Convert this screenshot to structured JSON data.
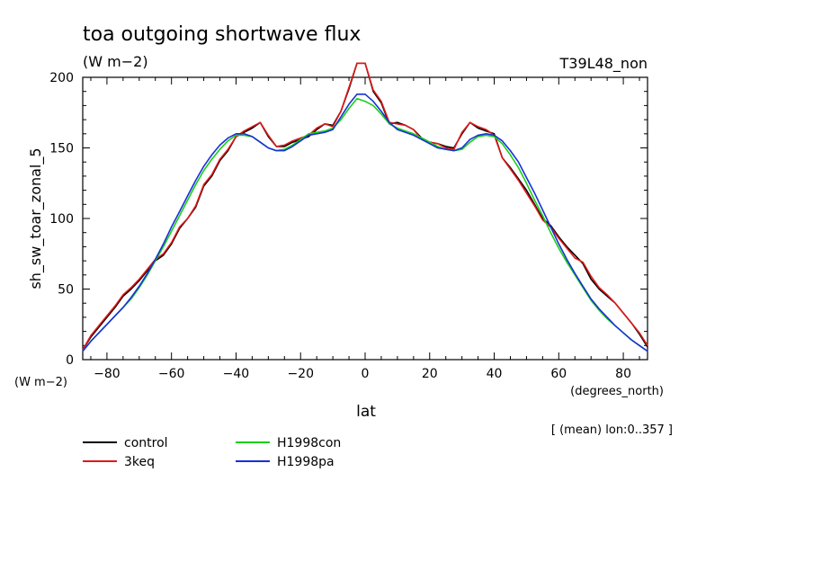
{
  "chart_data": {
    "type": "line",
    "title": "toa outgoing shortwave flux",
    "subtitle": "(W m−2)",
    "experiment_label": "T39L48_non",
    "ylabel": "sh_sw_toar_zonal_5",
    "y_unit_label": "(W m−2)",
    "xlabel": "lat",
    "x_unit_label": "(degrees_north)",
    "footnote": "[ (mean) lon:0..357 ]",
    "xlim": [
      -87.5,
      87.5
    ],
    "ylim": [
      0,
      200
    ],
    "x_ticks": [
      -80,
      -60,
      -40,
      -20,
      0,
      20,
      40,
      60,
      80
    ],
    "x_tick_labels": [
      "−80",
      "−60",
      "−40",
      "−20",
      "0",
      "20",
      "40",
      "60",
      "80"
    ],
    "y_ticks": [
      0,
      50,
      100,
      150,
      200
    ],
    "y_tick_labels": [
      "0",
      "50",
      "100",
      "150",
      "200"
    ],
    "grid": false,
    "legend_placement": "bottom-left",
    "series": [
      {
        "name": "control",
        "color": "#000000",
        "x": [
          -87.5,
          -85,
          -82.5,
          -80,
          -77.5,
          -75,
          -72.5,
          -70,
          -67.5,
          -65,
          -62.5,
          -60,
          -57.5,
          -55,
          -52.5,
          -50,
          -47.5,
          -45,
          -42.5,
          -40,
          -37.5,
          -35,
          -32.5,
          -30,
          -27.5,
          -25,
          -22.5,
          -20,
          -17.5,
          -15,
          -12.5,
          -10,
          -7.5,
          -5,
          -2.5,
          0,
          2.5,
          5,
          7.5,
          10,
          12.5,
          15,
          17.5,
          20,
          22.5,
          25,
          27.5,
          30,
          32.5,
          35,
          37.5,
          40,
          42.5,
          45,
          47.5,
          50,
          52.5,
          55,
          57.5,
          60,
          62.5,
          65,
          67.5,
          70,
          72.5,
          75,
          77.5,
          80,
          82.5,
          85,
          87.5
        ],
        "values": [
          7,
          16,
          23,
          30,
          37,
          45,
          50,
          56,
          63,
          70,
          74,
          82,
          93,
          100,
          108,
          123,
          130,
          141,
          148,
          158,
          161,
          164,
          168,
          158,
          151,
          151,
          154,
          156,
          158,
          163,
          167,
          166,
          176,
          192,
          210,
          210,
          190,
          182,
          167,
          168,
          166,
          163,
          157,
          154,
          153,
          151,
          150,
          160,
          168,
          164,
          162,
          160,
          143,
          136,
          128,
          120,
          110,
          100,
          95,
          87,
          80,
          74,
          68,
          57,
          50,
          45,
          40,
          33,
          26,
          18,
          9
        ]
      },
      {
        "name": "3keq",
        "color": "#e01818",
        "x": [
          -87.5,
          -85,
          -82.5,
          -80,
          -77.5,
          -75,
          -72.5,
          -70,
          -67.5,
          -65,
          -62.5,
          -60,
          -57.5,
          -55,
          -52.5,
          -50,
          -47.5,
          -45,
          -42.5,
          -40,
          -37.5,
          -35,
          -32.5,
          -30,
          -27.5,
          -25,
          -22.5,
          -20,
          -17.5,
          -15,
          -12.5,
          -10,
          -7.5,
          -5,
          -2.5,
          0,
          2.5,
          5,
          7.5,
          10,
          12.5,
          15,
          17.5,
          20,
          22.5,
          25,
          27.5,
          30,
          32.5,
          35,
          37.5,
          40,
          42.5,
          45,
          47.5,
          50,
          52.5,
          55,
          57.5,
          60,
          62.5,
          65,
          67.5,
          70,
          72.5,
          75,
          77.5,
          80,
          82.5,
          85,
          87.5
        ],
        "values": [
          7,
          17,
          24,
          31,
          38,
          46,
          51,
          57,
          64,
          71,
          75,
          83,
          94,
          100,
          109,
          124,
          131,
          142,
          149,
          158,
          162,
          165,
          168,
          159,
          151,
          152,
          155,
          157,
          159,
          164,
          167,
          165,
          176,
          193,
          210,
          210,
          191,
          183,
          168,
          167,
          166,
          163,
          156,
          154,
          153,
          150,
          149,
          161,
          168,
          165,
          163,
          159,
          143,
          135,
          127,
          118,
          109,
          99,
          94,
          86,
          79,
          72,
          69,
          59,
          51,
          46,
          40,
          33,
          26,
          19,
          10
        ]
      },
      {
        "name": "H1998con",
        "color": "#18d018",
        "x": [
          -87.5,
          -85,
          -82.5,
          -80,
          -77.5,
          -75,
          -72.5,
          -70,
          -67.5,
          -65,
          -62.5,
          -60,
          -57.5,
          -55,
          -52.5,
          -50,
          -47.5,
          -45,
          -42.5,
          -40,
          -37.5,
          -35,
          -32.5,
          -30,
          -27.5,
          -25,
          -22.5,
          -20,
          -17.5,
          -15,
          -12.5,
          -10,
          -7.5,
          -5,
          -2.5,
          0,
          2.5,
          5,
          7.5,
          10,
          12.5,
          15,
          17.5,
          20,
          22.5,
          25,
          27.5,
          30,
          32.5,
          35,
          37.5,
          40,
          42.5,
          45,
          47.5,
          50,
          52.5,
          55,
          57.5,
          60,
          62.5,
          65,
          67.5,
          70,
          72.5,
          75,
          77.5,
          80,
          82.5,
          85,
          87.5
        ],
        "values": [
          6,
          13,
          19,
          25,
          31,
          37,
          43,
          51,
          60,
          70,
          80,
          91,
          102,
          113,
          124,
          134,
          142,
          149,
          155,
          159,
          159,
          158,
          154,
          150,
          148,
          149,
          152,
          156,
          160,
          161,
          162,
          164,
          170,
          178,
          185,
          183,
          180,
          174,
          167,
          164,
          162,
          160,
          157,
          154,
          151,
          149,
          148,
          149,
          154,
          158,
          159,
          158,
          153,
          145,
          136,
          125,
          113,
          102,
          90,
          79,
          69,
          60,
          51,
          42,
          35,
          29,
          24,
          19,
          14,
          10,
          6
        ]
      },
      {
        "name": "H1998pa",
        "color": "#1830d8",
        "x": [
          -87.5,
          -85,
          -82.5,
          -80,
          -77.5,
          -75,
          -72.5,
          -70,
          -67.5,
          -65,
          -62.5,
          -60,
          -57.5,
          -55,
          -52.5,
          -50,
          -47.5,
          -45,
          -42.5,
          -40,
          -37.5,
          -35,
          -32.5,
          -30,
          -27.5,
          -25,
          -22.5,
          -20,
          -17.5,
          -15,
          -12.5,
          -10,
          -7.5,
          -5,
          -2.5,
          0,
          2.5,
          5,
          7.5,
          10,
          12.5,
          15,
          17.5,
          20,
          22.5,
          25,
          27.5,
          30,
          32.5,
          35,
          37.5,
          40,
          42.5,
          45,
          47.5,
          50,
          52.5,
          55,
          57.5,
          60,
          62.5,
          65,
          67.5,
          70,
          72.5,
          75,
          77.5,
          80,
          82.5,
          85,
          87.5
        ],
        "values": [
          6,
          13,
          19,
          25,
          31,
          37,
          44,
          52,
          61,
          71,
          82,
          94,
          105,
          116,
          127,
          137,
          145,
          152,
          157,
          160,
          160,
          158,
          154,
          150,
          148,
          148,
          151,
          155,
          159,
          160,
          161,
          163,
          172,
          181,
          188,
          188,
          183,
          176,
          168,
          163,
          161,
          159,
          156,
          153,
          150,
          149,
          148,
          150,
          156,
          159,
          160,
          159,
          155,
          148,
          140,
          129,
          118,
          106,
          94,
          82,
          71,
          61,
          52,
          43,
          36,
          30,
          24,
          19,
          14,
          10,
          6
        ]
      }
    ]
  }
}
